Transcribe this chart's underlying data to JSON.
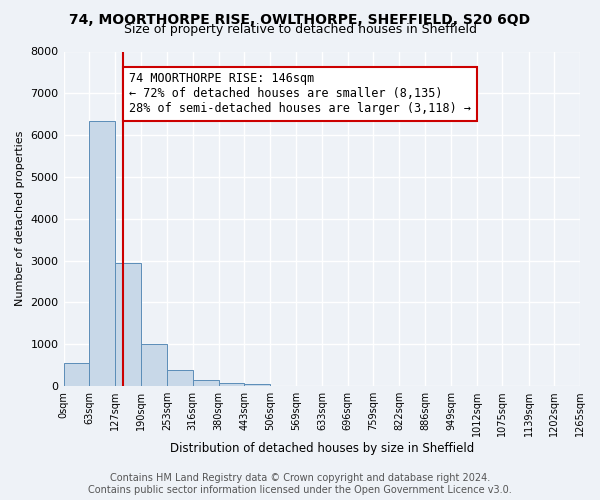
{
  "title": "74, MOORTHORPE RISE, OWLTHORPE, SHEFFIELD, S20 6QD",
  "subtitle": "Size of property relative to detached houses in Sheffield",
  "xlabel": "Distribution of detached houses by size in Sheffield",
  "ylabel": "Number of detached properties",
  "bin_edges": [
    0,
    63,
    127,
    190,
    253,
    316,
    380,
    443,
    506,
    569,
    633,
    696,
    759,
    822,
    886,
    949,
    1012,
    1075,
    1139,
    1202,
    1265
  ],
  "bin_labels": [
    "0sqm",
    "63sqm",
    "127sqm",
    "190sqm",
    "253sqm",
    "316sqm",
    "380sqm",
    "443sqm",
    "506sqm",
    "569sqm",
    "633sqm",
    "696sqm",
    "759sqm",
    "822sqm",
    "886sqm",
    "949sqm",
    "1012sqm",
    "1075sqm",
    "1139sqm",
    "1202sqm",
    "1265sqm"
  ],
  "bar_heights": [
    550,
    6350,
    2950,
    1000,
    380,
    150,
    80,
    50,
    0,
    0,
    0,
    0,
    0,
    0,
    0,
    0,
    0,
    0,
    0,
    0
  ],
  "bar_color": "#c8d8e8",
  "bar_edge_color": "#5b8db8",
  "property_size": 146,
  "vline_color": "#cc0000",
  "annotation_text": "74 MOORTHORPE RISE: 146sqm\n← 72% of detached houses are smaller (8,135)\n28% of semi-detached houses are larger (3,118) →",
  "annotation_bbox_color": "#ffffff",
  "annotation_bbox_edge": "#cc0000",
  "ylim": [
    0,
    8000
  ],
  "yticks": [
    0,
    1000,
    2000,
    3000,
    4000,
    5000,
    6000,
    7000,
    8000
  ],
  "footer_text": "Contains HM Land Registry data © Crown copyright and database right 2024.\nContains public sector information licensed under the Open Government Licence v3.0.",
  "bg_color": "#eef2f7",
  "grid_color": "#ffffff",
  "title_fontsize": 10,
  "subtitle_fontsize": 9,
  "annotation_fontsize": 8.5,
  "footer_fontsize": 7,
  "ylabel_fontsize": 8,
  "xlabel_fontsize": 8.5
}
